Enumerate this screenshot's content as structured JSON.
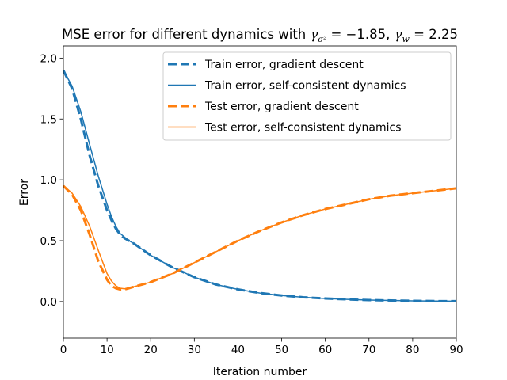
{
  "chart_data": {
    "type": "line",
    "title": {
      "prefix": "MSE error for different dynamics with ",
      "g1": "γ",
      "g1_sub": "σ²",
      "eq1": " = −1.85, ",
      "g2": "γ",
      "g2_sub": "w",
      "eq2": " = 2.25"
    },
    "xlabel": "Iteration number",
    "ylabel": "Error",
    "xlim": [
      0,
      90
    ],
    "ylim": [
      -0.3,
      2.1
    ],
    "xticks": [
      0,
      10,
      20,
      30,
      40,
      50,
      60,
      70,
      80,
      90
    ],
    "xtick_labels": [
      "0",
      "10",
      "20",
      "30",
      "40",
      "50",
      "60",
      "70",
      "80",
      "90"
    ],
    "yticks": [
      0.0,
      0.5,
      1.0,
      1.5,
      2.0
    ],
    "ytick_labels": [
      "0.0",
      "0.5",
      "1.0",
      "1.5",
      "2.0"
    ],
    "legend_position": "top-right",
    "x": [
      0,
      2,
      4,
      6,
      8,
      10,
      11,
      12,
      13,
      14,
      15,
      16,
      18,
      20,
      25,
      30,
      35,
      40,
      45,
      50,
      55,
      60,
      65,
      70,
      75,
      80,
      85,
      90
    ],
    "series": [
      {
        "name": "Train error, gradient descent",
        "color": "#1f77b4",
        "style": "dashed",
        "values": [
          1.9,
          1.75,
          1.5,
          1.2,
          0.95,
          0.75,
          0.67,
          0.6,
          0.55,
          0.52,
          0.5,
          0.48,
          0.43,
          0.38,
          0.28,
          0.2,
          0.14,
          0.1,
          0.07,
          0.05,
          0.035,
          0.025,
          0.018,
          0.012,
          0.009,
          0.006,
          0.004,
          0.003
        ]
      },
      {
        "name": "Train error, self-consistent dynamics",
        "color": "#1f77b4",
        "style": "solid",
        "values": [
          1.9,
          1.77,
          1.56,
          1.29,
          1.03,
          0.8,
          0.7,
          0.62,
          0.56,
          0.53,
          0.5,
          0.48,
          0.43,
          0.38,
          0.28,
          0.2,
          0.14,
          0.1,
          0.07,
          0.05,
          0.035,
          0.025,
          0.018,
          0.012,
          0.009,
          0.006,
          0.004,
          0.003
        ]
      },
      {
        "name": "Test error, gradient descent",
        "color": "#ff7f0e",
        "style": "dashed",
        "values": [
          0.95,
          0.88,
          0.75,
          0.55,
          0.33,
          0.18,
          0.13,
          0.11,
          0.1,
          0.1,
          0.11,
          0.12,
          0.14,
          0.16,
          0.23,
          0.32,
          0.41,
          0.5,
          0.58,
          0.65,
          0.71,
          0.76,
          0.8,
          0.84,
          0.87,
          0.89,
          0.91,
          0.93
        ]
      },
      {
        "name": "Test error, self-consistent dynamics",
        "color": "#ff7f0e",
        "style": "solid",
        "values": [
          0.95,
          0.89,
          0.78,
          0.62,
          0.42,
          0.23,
          0.17,
          0.13,
          0.11,
          0.105,
          0.11,
          0.12,
          0.14,
          0.16,
          0.23,
          0.32,
          0.41,
          0.5,
          0.58,
          0.65,
          0.71,
          0.76,
          0.8,
          0.84,
          0.87,
          0.89,
          0.91,
          0.93
        ]
      }
    ]
  }
}
